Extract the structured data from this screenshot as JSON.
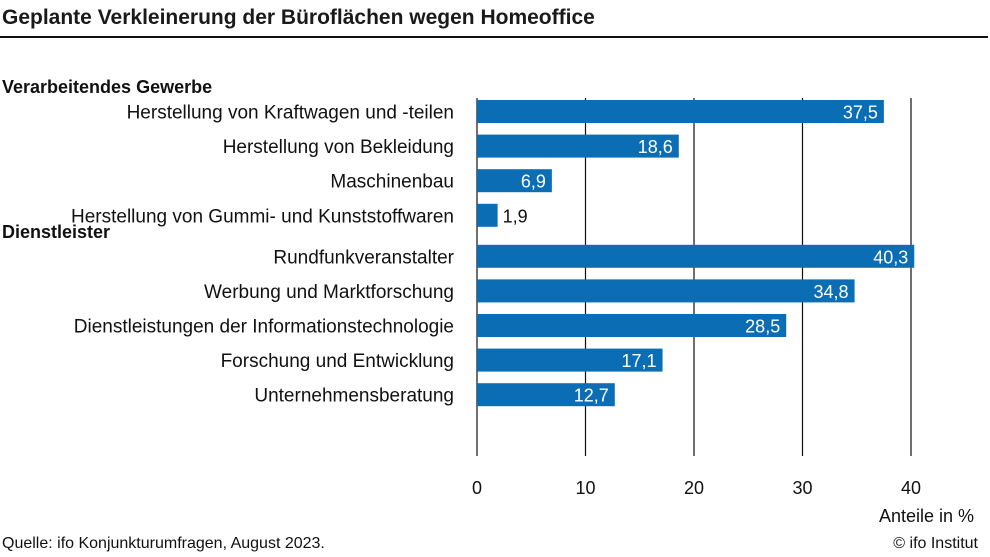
{
  "chart_data": {
    "type": "bar",
    "orientation": "horizontal",
    "title": "Geplante Verkleinerung der Büroflächen wegen Homeoffice",
    "groups": [
      {
        "name": "Verarbeitendes Gewerbe",
        "categories": [
          "Herstellung von Kraftwagen und -teilen",
          "Herstellung von Bekleidung",
          "Maschinenbau",
          "Herstellung von Gummi- und Kunststoffwaren"
        ],
        "values": [
          37.5,
          18.6,
          6.9,
          1.9
        ],
        "value_labels": [
          "37,5",
          "18,6",
          "6,9",
          "1,9"
        ]
      },
      {
        "name": "Dienstleister",
        "categories": [
          "Rundfunkveranstalter",
          "Werbung und Marktforschung",
          "Dienstleistungen der Informationstechnologie",
          "Forschung und Entwicklung",
          "Unternehmensberatung"
        ],
        "values": [
          40.3,
          34.8,
          28.5,
          17.1,
          12.7
        ],
        "value_labels": [
          "40,3",
          "34,8",
          "28,5",
          "17,1",
          "12,7"
        ]
      }
    ],
    "xlabel": "Anteile in %",
    "xlim": [
      0,
      40
    ],
    "xticks": [
      0,
      10,
      20,
      30,
      40
    ],
    "xtick_labels": [
      "0",
      "10",
      "20",
      "30",
      "40"
    ],
    "grid": true,
    "legend": "none",
    "bar_color": "#0b6db4",
    "source": "Quelle: ifo Konjunkturumfragen, August 2023.",
    "credit": "© ifo Institut"
  }
}
